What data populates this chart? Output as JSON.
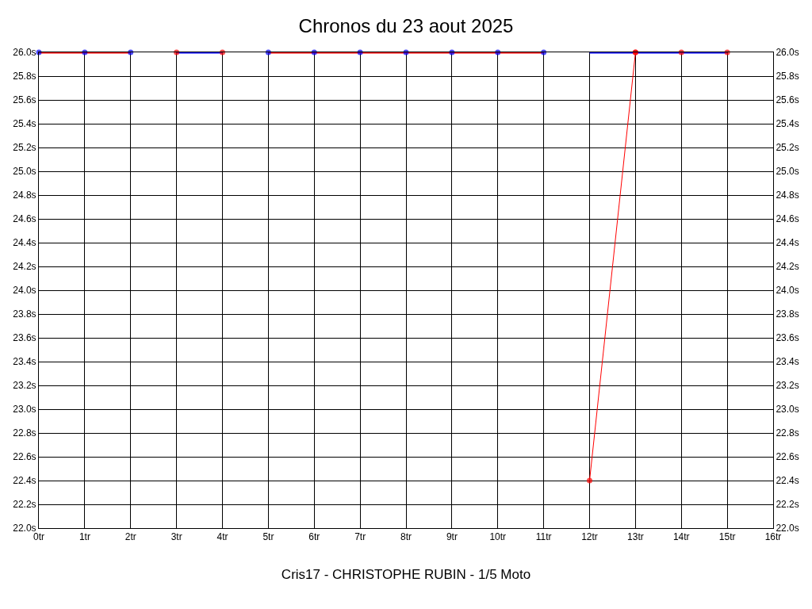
{
  "chart_data": {
    "type": "line",
    "title": "Chronos du 23 aout 2025",
    "xlabel": "Cris17 - CHRISTOPHE RUBIN - 1/5 Moto",
    "x": [
      0,
      1,
      2,
      3,
      4,
      5,
      6,
      7,
      8,
      9,
      10,
      11,
      12,
      13,
      14,
      15
    ],
    "series": [
      {
        "color": "#ff0000",
        "colors": [
          "#0000ff",
          "#0000ff",
          "#0000ff",
          null,
          null,
          "#0000ff",
          "#0000ff",
          "#0000ff",
          "#0000ff",
          "#0000ff",
          "#0000ff",
          "#0000ff",
          null,
          null,
          null,
          null
        ],
        "values": [
          26.0,
          26.0,
          26.0,
          null,
          null,
          26.0,
          26.0,
          26.0,
          26.0,
          26.0,
          26.0,
          26.0,
          null,
          null,
          null,
          null
        ]
      },
      {
        "color": "#0000ff",
        "colors": [
          null,
          null,
          null,
          "#ff0000",
          "#ff0000",
          null,
          null,
          null,
          null,
          null,
          null,
          null,
          null,
          "#ff0000",
          "#ff0000",
          "#ff0000"
        ],
        "values": [
          null,
          null,
          null,
          26.0,
          26.0,
          null,
          null,
          null,
          null,
          null,
          null,
          null,
          26.0,
          26.0,
          26.0,
          26.0
        ]
      },
      {
        "color": "#ff0000",
        "colors": [
          "#ff0000",
          "#ff0000"
        ],
        "x": [
          12,
          13
        ],
        "values": [
          22.4,
          26.0
        ]
      }
    ],
    "xlim": [
      0,
      16
    ],
    "xticks": [
      {
        "value": 0,
        "label": "0tr"
      },
      {
        "value": 1,
        "label": "1tr"
      },
      {
        "value": 2,
        "label": "2tr"
      },
      {
        "value": 3,
        "label": "3tr"
      },
      {
        "value": 4,
        "label": "4tr"
      },
      {
        "value": 5,
        "label": "5tr"
      },
      {
        "value": 6,
        "label": "6tr"
      },
      {
        "value": 7,
        "label": "7tr"
      },
      {
        "value": 8,
        "label": "8tr"
      },
      {
        "value": 9,
        "label": "9tr"
      },
      {
        "value": 10,
        "label": "10tr"
      },
      {
        "value": 11,
        "label": "11tr"
      },
      {
        "value": 12,
        "label": "12tr"
      },
      {
        "value": 13,
        "label": "13tr"
      },
      {
        "value": 14,
        "label": "14tr"
      },
      {
        "value": 15,
        "label": "15tr"
      },
      {
        "value": 16,
        "label": "16tr"
      }
    ],
    "ylim": [
      22.0,
      26.0
    ],
    "yticks": [
      {
        "value": 22.0,
        "label": "22.0s"
      },
      {
        "value": 22.2,
        "label": "22.2s"
      },
      {
        "value": 22.4,
        "label": "22.4s"
      },
      {
        "value": 22.6,
        "label": "22.6s"
      },
      {
        "value": 22.8,
        "label": "22.8s"
      },
      {
        "value": 23.0,
        "label": "23.0s"
      },
      {
        "value": 23.2,
        "label": "23.2s"
      },
      {
        "value": 23.4,
        "label": "23.4s"
      },
      {
        "value": 23.6,
        "label": "23.6s"
      },
      {
        "value": 23.8,
        "label": "23.8s"
      },
      {
        "value": 24.0,
        "label": "24.0s"
      },
      {
        "value": 24.2,
        "label": "24.2s"
      },
      {
        "value": 24.4,
        "label": "24.4s"
      },
      {
        "value": 24.6,
        "label": "24.6s"
      },
      {
        "value": 24.8,
        "label": "24.8s"
      },
      {
        "value": 25.0,
        "label": "25.0s"
      },
      {
        "value": 25.2,
        "label": "25.2s"
      },
      {
        "value": 25.4,
        "label": "25.4s"
      },
      {
        "value": 25.6,
        "label": "25.6s"
      },
      {
        "value": 25.8,
        "label": "25.8s"
      },
      {
        "value": 26.0,
        "label": "26.0s"
      }
    ],
    "y2lim": [
      22.0,
      26.0
    ],
    "y2ticks": [
      {
        "value": 22.0,
        "label": "22.0s"
      },
      {
        "value": 22.2,
        "label": "22.2s"
      },
      {
        "value": 22.4,
        "label": "22.4s"
      },
      {
        "value": 22.6,
        "label": "22.6s"
      },
      {
        "value": 22.8,
        "label": "22.8s"
      },
      {
        "value": 23.0,
        "label": "23.0s"
      },
      {
        "value": 23.2,
        "label": "23.2s"
      },
      {
        "value": 23.4,
        "label": "23.4s"
      },
      {
        "value": 23.6,
        "label": "23.6s"
      },
      {
        "value": 23.8,
        "label": "23.8s"
      },
      {
        "value": 24.0,
        "label": "24.0s"
      },
      {
        "value": 24.2,
        "label": "24.2s"
      },
      {
        "value": 24.4,
        "label": "24.4s"
      },
      {
        "value": 24.6,
        "label": "24.6s"
      },
      {
        "value": 24.8,
        "label": "24.8s"
      },
      {
        "value": 25.0,
        "label": "25.0s"
      },
      {
        "value": 25.2,
        "label": "25.2s"
      },
      {
        "value": 25.4,
        "label": "25.4s"
      },
      {
        "value": 25.6,
        "label": "25.6s"
      },
      {
        "value": 25.8,
        "label": "25.8s"
      },
      {
        "value": 26.0,
        "label": "26.0s"
      }
    ],
    "grid": true,
    "marker": "circle",
    "line_style": "solid"
  }
}
